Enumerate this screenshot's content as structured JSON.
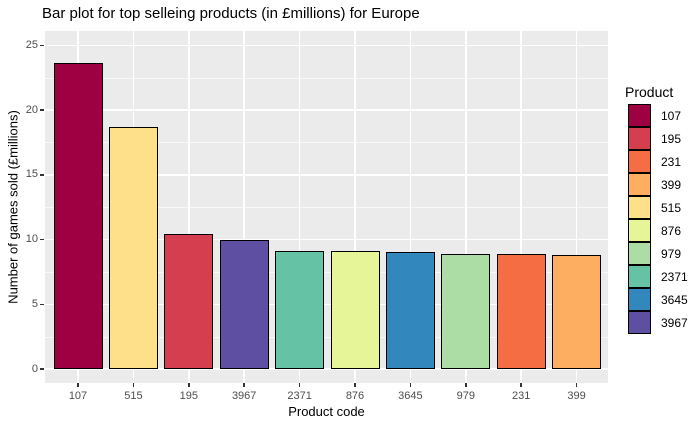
{
  "chart_data": {
    "type": "bar",
    "title": "Bar plot for top selleing products (in £millions) for Europe",
    "xlabel": "Product code",
    "ylabel": "Number of games sold (£millions)",
    "categories": [
      "107",
      "515",
      "195",
      "3967",
      "2371",
      "876",
      "3645",
      "979",
      "231",
      "399"
    ],
    "values": [
      23.6,
      18.7,
      10.4,
      10.0,
      9.1,
      9.1,
      9.0,
      8.9,
      8.9,
      8.8
    ],
    "bar_colors": [
      "#9E0142",
      "#FEE08B",
      "#D53E4F",
      "#5E4FA2",
      "#66C2A5",
      "#E6F598",
      "#3288BD",
      "#ABDDA4",
      "#F46D43",
      "#FDAE61"
    ],
    "ylim": [
      0,
      25
    ],
    "yticks": [
      0,
      5,
      10,
      15,
      20,
      25
    ],
    "ytick_labels": [
      "0",
      "5",
      "10",
      "15",
      "20",
      "25"
    ],
    "minor_yticks": [
      2.5,
      7.5,
      12.5,
      17.5,
      22.5
    ],
    "grid": true,
    "panel_bg": "#EBEBEB",
    "grid_color": "#FFFFFF",
    "axis_text_color": "#4D4D4D",
    "legend": {
      "title": "Product",
      "position": "right",
      "entries": [
        {
          "label": "107",
          "color": "#9E0142"
        },
        {
          "label": "195",
          "color": "#D53E4F"
        },
        {
          "label": "231",
          "color": "#F46D43"
        },
        {
          "label": "399",
          "color": "#FDAE61"
        },
        {
          "label": "515",
          "color": "#FEE08B"
        },
        {
          "label": "876",
          "color": "#E6F598"
        },
        {
          "label": "979",
          "color": "#ABDDA4"
        },
        {
          "label": "2371",
          "color": "#66C2A5"
        },
        {
          "label": "3645",
          "color": "#3288BD"
        },
        {
          "label": "3967",
          "color": "#5E4FA2"
        }
      ]
    }
  }
}
